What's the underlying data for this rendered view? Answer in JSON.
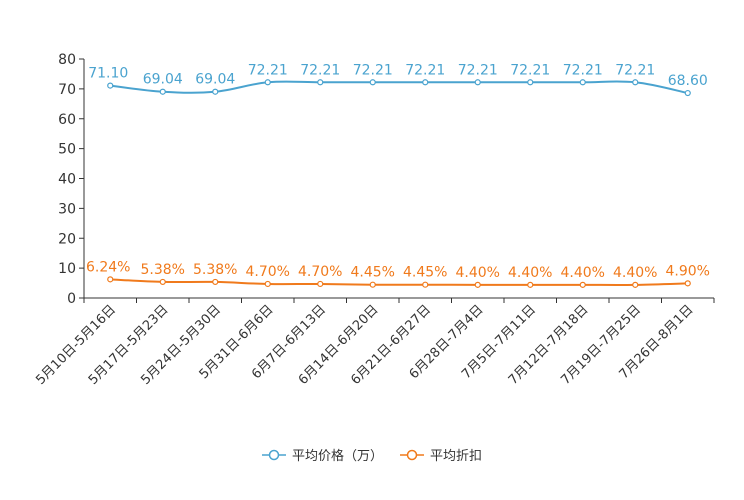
{
  "chart_data": {
    "type": "line",
    "categories": [
      "5月10日-5月16日",
      "5月17日-5月23日",
      "5月24日-5月30日",
      "5月31日-6月6日",
      "6月7日-6月13日",
      "6月14日-6月20日",
      "6月21日-6月27日",
      "6月28日-7月4日",
      "7月5日-7月11日",
      "7月12日-7月18日",
      "7月19日-7月25日",
      "7月26日-8月1日"
    ],
    "series": [
      {
        "name": "平均价格（万）",
        "color": "#4aa3cf",
        "values": [
          71.1,
          69.04,
          69.04,
          72.21,
          72.21,
          72.21,
          72.21,
          72.21,
          72.21,
          72.21,
          72.21,
          68.6
        ],
        "labels": [
          "71.10",
          "69.04",
          "69.04",
          "72.21",
          "72.21",
          "72.21",
          "72.21",
          "72.21",
          "72.21",
          "72.21",
          "72.21",
          "68.60"
        ]
      },
      {
        "name": "平均折扣",
        "color": "#f07a1c",
        "values": [
          6.24,
          5.38,
          5.38,
          4.7,
          4.7,
          4.45,
          4.45,
          4.4,
          4.4,
          4.4,
          4.4,
          4.9
        ],
        "labels": [
          "6.24%",
          "5.38%",
          "5.38%",
          "4.70%",
          "4.70%",
          "4.45%",
          "4.45%",
          "4.40%",
          "4.40%",
          "4.40%",
          "4.40%",
          "4.90%"
        ]
      }
    ],
    "ylim": [
      0,
      80
    ],
    "yticks": [
      "0",
      "10",
      "20",
      "30",
      "40",
      "50",
      "60",
      "70",
      "80"
    ],
    "legend_position": "bottom-center",
    "grid": false
  }
}
